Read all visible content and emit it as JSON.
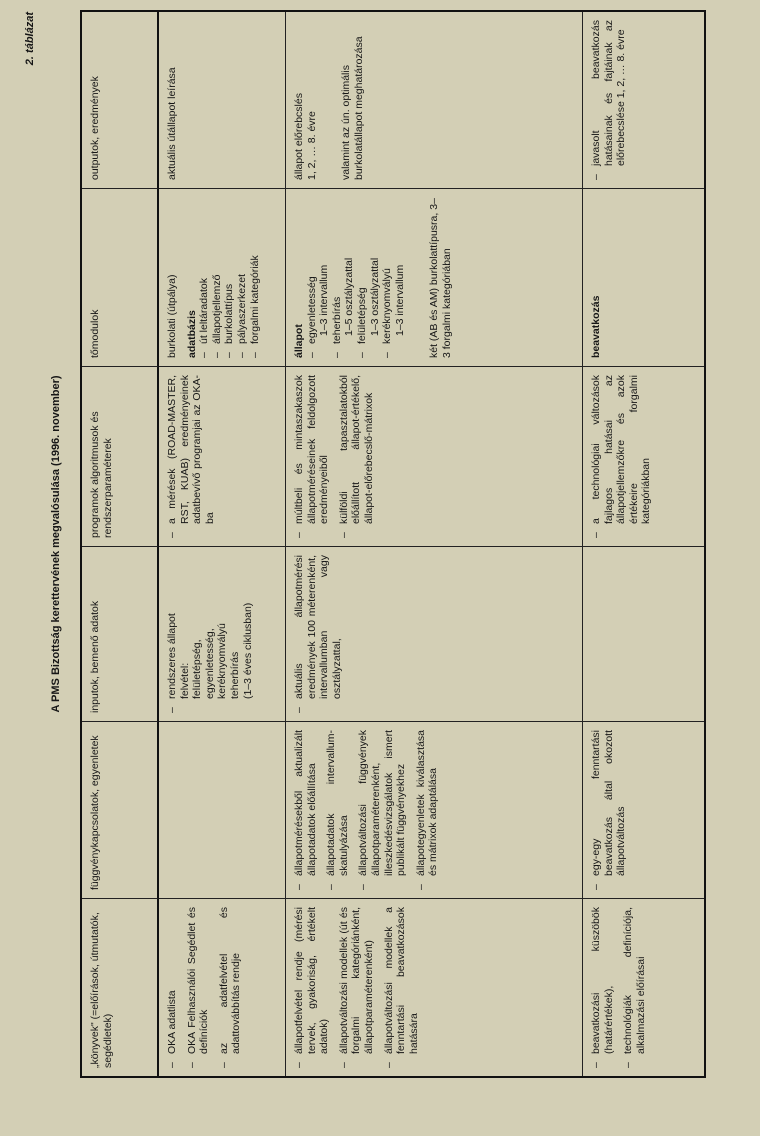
{
  "table_number": "2. táblázat",
  "title": "A PMS Bizottság kerettervének megvalósulása (1996. november)",
  "header": [
    "„könyvek\" (=előírások, útmutatók, segédletek)",
    "függvénykapcsolatok, egyenletek",
    "inputok, bemenő adatok",
    "programok algoritmusok és rendszerparaméterek",
    "tőmodulok",
    "outputok, eredmények"
  ],
  "rows": [
    {
      "cells": [
        [
          {
            "type": "dash",
            "text": "OKA adatlista"
          },
          {
            "type": "dash",
            "text": "OKA Felhasználói Segédlet és definíciók"
          },
          {
            "type": "dash",
            "text": "az adatfelvétel és adattovábbítás rendje"
          }
        ],
        [],
        [
          {
            "type": "dash",
            "text": "rendszeres állapot\nfelvétel:\nfelületépség,\negyenletesség,\nkeréknyomvályú\nteherbírás\n(1–3 éves ciklusban)"
          }
        ],
        [
          {
            "type": "dash",
            "text": "a mérések (ROAD-MASTER, RST, KUAB) eredményeinek adatbevívő programjai az OKA-ba"
          }
        ],
        [
          {
            "type": "p",
            "text": "burkolati (útpálya)"
          },
          {
            "type": "p",
            "text": "adatbázis",
            "bold": true,
            "tight": true
          },
          {
            "type": "sub",
            "label": "út leltáradatok"
          },
          {
            "type": "sub",
            "label": "állapotjellemző"
          },
          {
            "type": "sub",
            "label": "burkolattípus"
          },
          {
            "type": "sub",
            "label": "pályaszerkezet"
          },
          {
            "type": "sub",
            "label": "forgalmi kategóriák"
          }
        ],
        [
          {
            "type": "p",
            "text": "aktuális útállapot leírása"
          }
        ]
      ]
    },
    {
      "cells": [
        [
          {
            "type": "dash",
            "text": "állapotfelvétel rendje (mérési tervek, gyakoriság, értékelt adatok)"
          },
          {
            "type": "dash",
            "text": "állapotváltozási modellek (út és forgalmi kategóriánként, állapotparaméterenként)"
          },
          {
            "type": "dash",
            "text": "állapotváltozási modellek a fenntartási beavatkozások hatására"
          }
        ],
        [
          {
            "type": "dash",
            "text": "állapotmérésekből aktualizált állapotadatok előállítása"
          },
          {
            "type": "dash",
            "text": "állapotadatok intervallum-skatulyázása"
          },
          {
            "type": "dash",
            "text": "állapotváltozási függvények állapotparaméterenként, illeszkedésvizsgálatok ismert publikált függvényekhez"
          },
          {
            "type": "dash",
            "text": "állapotegyenletek kiválasztása és mátrixok adaptálása"
          }
        ],
        [
          {
            "type": "dash",
            "text": "aktuális állapotmérési eredmények 100 méterenként, intervallumban vagy osztályzattal,"
          }
        ],
        [
          {
            "type": "dash",
            "text": "múltbeli és mintaszakaszok állapotméréseinek feldolgozott eredményeiből"
          },
          {
            "type": "dash",
            "text": "külföldi tapasztalatokból előállított állapot-értékelő, állapot-előrebecslő-mátrixok"
          }
        ],
        [
          {
            "type": "p",
            "text": "állapot",
            "bold": true,
            "tight": true
          },
          {
            "type": "sub",
            "label": "egyenletesség",
            "detail": "1–3 intervallum"
          },
          {
            "type": "sub",
            "label": "teherbírás",
            "detail": "1–5 osztályzattal"
          },
          {
            "type": "sub",
            "label": "felületépség",
            "detail": "1–3 osztályzattal"
          },
          {
            "type": "sub",
            "label": "keréknyomvályú",
            "detail": "1–3 intervallum"
          },
          {
            "type": "p",
            "text": "két (AB és AM) burkolattípusra, 3–3 forgalmi kategóriában",
            "gap": true
          }
        ],
        [
          {
            "type": "p",
            "text": "állapot előrebcslés\n1, 2, … 8. évre"
          },
          {
            "type": "p",
            "text": "valamint az ún. optimális burkolatállapot meghatározása",
            "gap": true
          }
        ]
      ]
    },
    {
      "cells": [
        [
          {
            "type": "dash",
            "text": "beavatkozási küszöbök (határértékek),"
          },
          {
            "type": "dash",
            "text": "technológiák definíciója, alkalmazási előírásai"
          }
        ],
        [
          {
            "type": "dash",
            "text": "egy-egy fenntartási beavatkozás által okozott állapotváltozás"
          }
        ],
        [],
        [
          {
            "type": "dash",
            "text": "a technológiai változások fajlagos hatásai az állapotjellemzőkre és azok értékeire forgalmi kategóriákban"
          }
        ],
        [
          {
            "type": "p",
            "text": "beavatkozás",
            "bold": true
          }
        ],
        [
          {
            "type": "dash",
            "text": "javasolt beavatkozás hatásainak és fajtáinak az előrebecslése 1, 2, … 8. évre"
          }
        ]
      ]
    }
  ],
  "dash_glyph": "–",
  "colors": {
    "paper": "#d3cfb5",
    "ink": "#161616"
  }
}
